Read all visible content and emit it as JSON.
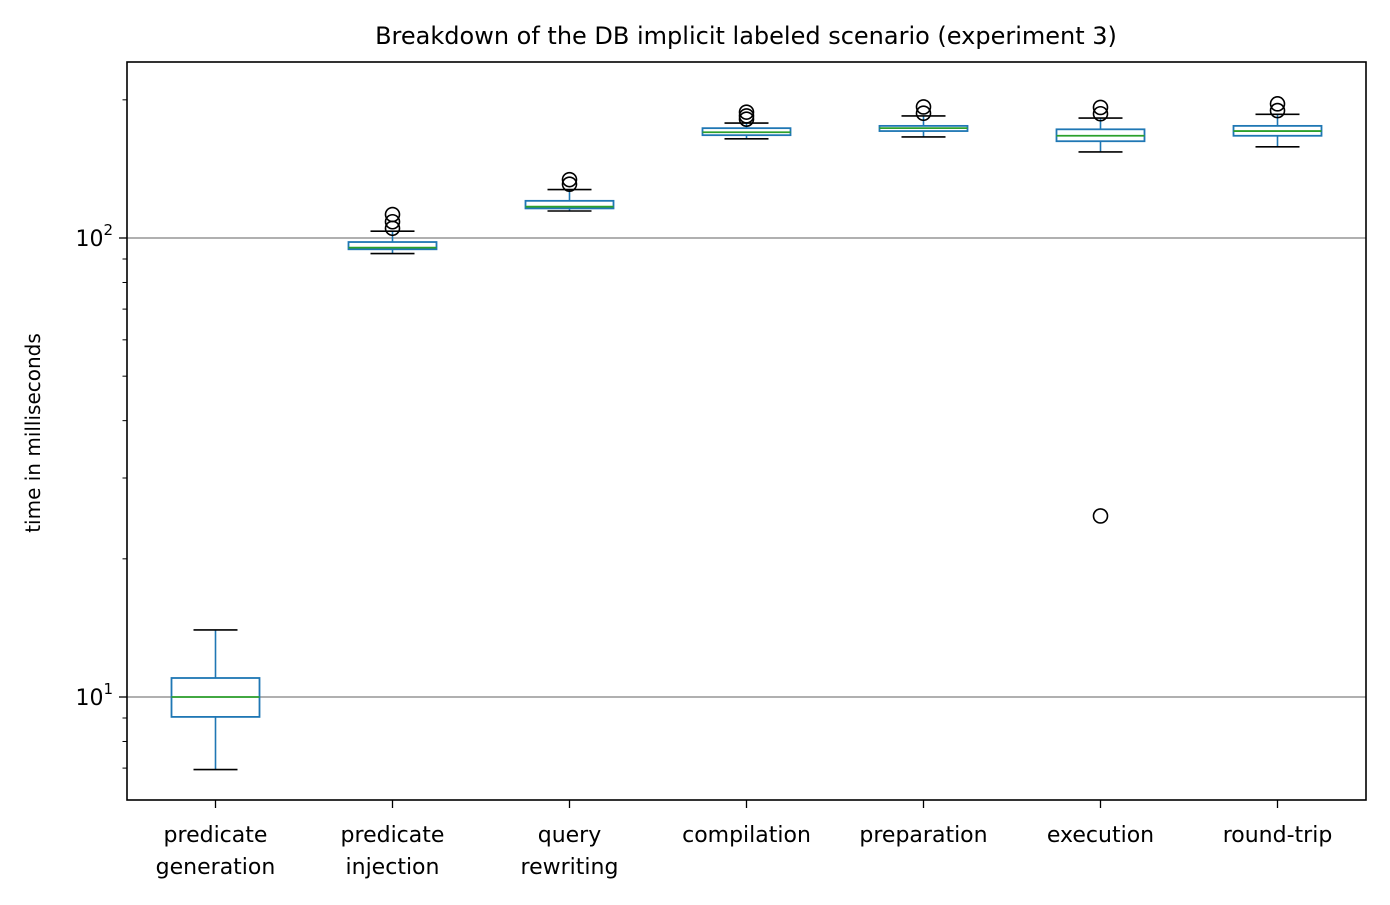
{
  "chart_data": {
    "type": "box",
    "title": "Breakdown of the DB implicit labeled scenario (experiment 3)",
    "xlabel": "",
    "ylabel": "time in milliseconds",
    "yscale": "log",
    "ylim": [
      6.0,
      230
    ],
    "y_ticks": [
      {
        "value": 10,
        "base": "10",
        "exp": "1"
      },
      {
        "value": 100,
        "base": "10",
        "exp": "2"
      }
    ],
    "grid": "horizontal at major ticks",
    "colors": {
      "box": "#1f77b4",
      "median": "#2ca02c",
      "whisker_cap": "#000000",
      "outlier": "#000000",
      "grid": "#808080"
    },
    "categories": [
      {
        "label": [
          "predicate",
          "generation"
        ],
        "whislo": 6.95,
        "q1": 9.05,
        "med": 10.0,
        "q3": 11.0,
        "whishi": 14.0,
        "fliers": []
      },
      {
        "label": [
          "predicate",
          "injection"
        ],
        "whislo": 92.5,
        "q1": 94.5,
        "med": 95.3,
        "q3": 98.0,
        "whishi": 103.5,
        "fliers": [
          105.0,
          108.5,
          112.5
        ]
      },
      {
        "label": [
          "query",
          "rewriting"
        ],
        "whislo": 114.5,
        "q1": 116.0,
        "med": 117.0,
        "q3": 120.5,
        "whishi": 127.5,
        "fliers": [
          131.0,
          134.0
        ]
      },
      {
        "label": [
          "compilation"
        ],
        "whislo": 164.5,
        "q1": 167.5,
        "med": 170.0,
        "q3": 173.5,
        "whishi": 178.0,
        "fliers": [
          181.5,
          184.5,
          188.0
        ]
      },
      {
        "label": [
          "preparation"
        ],
        "whislo": 166.0,
        "q1": 171.0,
        "med": 173.5,
        "q3": 175.5,
        "whishi": 184.5,
        "fliers": [
          187.0,
          193.0
        ]
      },
      {
        "label": [
          "execution"
        ],
        "whislo": 154.0,
        "q1": 162.5,
        "med": 167.0,
        "q3": 172.5,
        "whishi": 182.5,
        "fliers": [
          24.8,
          186.5,
          192.5
        ]
      },
      {
        "label": [
          "round-trip"
        ],
        "whislo": 158.0,
        "q1": 167.0,
        "med": 171.0,
        "q3": 175.5,
        "whishi": 186.0,
        "fliers": [
          189.5,
          196.0
        ]
      }
    ]
  }
}
